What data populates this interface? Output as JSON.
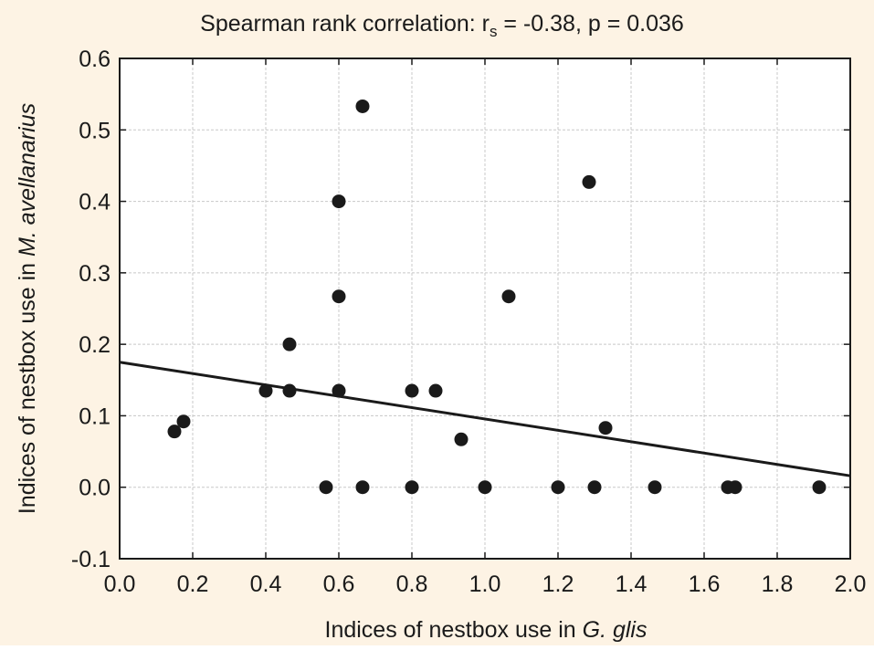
{
  "chart_data": {
    "type": "scatter",
    "title_main": "Spearman rank correlation: r",
    "title_sub": "s",
    "title_rest": " = -0.38, p = 0.036",
    "xlabel_prefix": "Indices of nestbox use in ",
    "xlabel_species": "G. glis",
    "ylabel_prefix": "Indices of nestbox use in ",
    "ylabel_species": "M. avellanarius",
    "xlim": [
      0.0,
      2.0
    ],
    "ylim": [
      -0.1,
      0.6
    ],
    "xticks": [
      "0.0",
      "0.2",
      "0.4",
      "0.6",
      "0.8",
      "1.0",
      "1.2",
      "1.4",
      "1.6",
      "1.8",
      "2.0"
    ],
    "yticks": [
      "-0.1",
      "0.0",
      "0.1",
      "0.2",
      "0.3",
      "0.4",
      "0.5",
      "0.6"
    ],
    "grid": true,
    "points": [
      {
        "x": 0.15,
        "y": 0.078
      },
      {
        "x": 0.175,
        "y": 0.092
      },
      {
        "x": 0.4,
        "y": 0.135
      },
      {
        "x": 0.465,
        "y": 0.135
      },
      {
        "x": 0.465,
        "y": 0.2
      },
      {
        "x": 0.565,
        "y": 0.0
      },
      {
        "x": 0.6,
        "y": 0.4
      },
      {
        "x": 0.6,
        "y": 0.267
      },
      {
        "x": 0.6,
        "y": 0.135
      },
      {
        "x": 0.665,
        "y": 0.533
      },
      {
        "x": 0.665,
        "y": 0.0
      },
      {
        "x": 0.8,
        "y": 0.135
      },
      {
        "x": 0.8,
        "y": 0.0
      },
      {
        "x": 0.865,
        "y": 0.135
      },
      {
        "x": 0.935,
        "y": 0.067
      },
      {
        "x": 1.0,
        "y": 0.0
      },
      {
        "x": 1.065,
        "y": 0.267
      },
      {
        "x": 1.2,
        "y": 0.0
      },
      {
        "x": 1.285,
        "y": 0.427
      },
      {
        "x": 1.3,
        "y": 0.0
      },
      {
        "x": 1.33,
        "y": 0.083
      },
      {
        "x": 1.465,
        "y": 0.0
      },
      {
        "x": 1.665,
        "y": 0.0
      },
      {
        "x": 1.685,
        "y": 0.0
      },
      {
        "x": 1.915,
        "y": 0.0
      }
    ],
    "fit_line": {
      "x": [
        0.0,
        2.0
      ],
      "y": [
        0.175,
        0.016
      ]
    },
    "point_color": "#1a1a1a",
    "line_color": "#1a1a1a",
    "background_color": "#fdf3e4",
    "plot_background_color": "#ffffff"
  }
}
